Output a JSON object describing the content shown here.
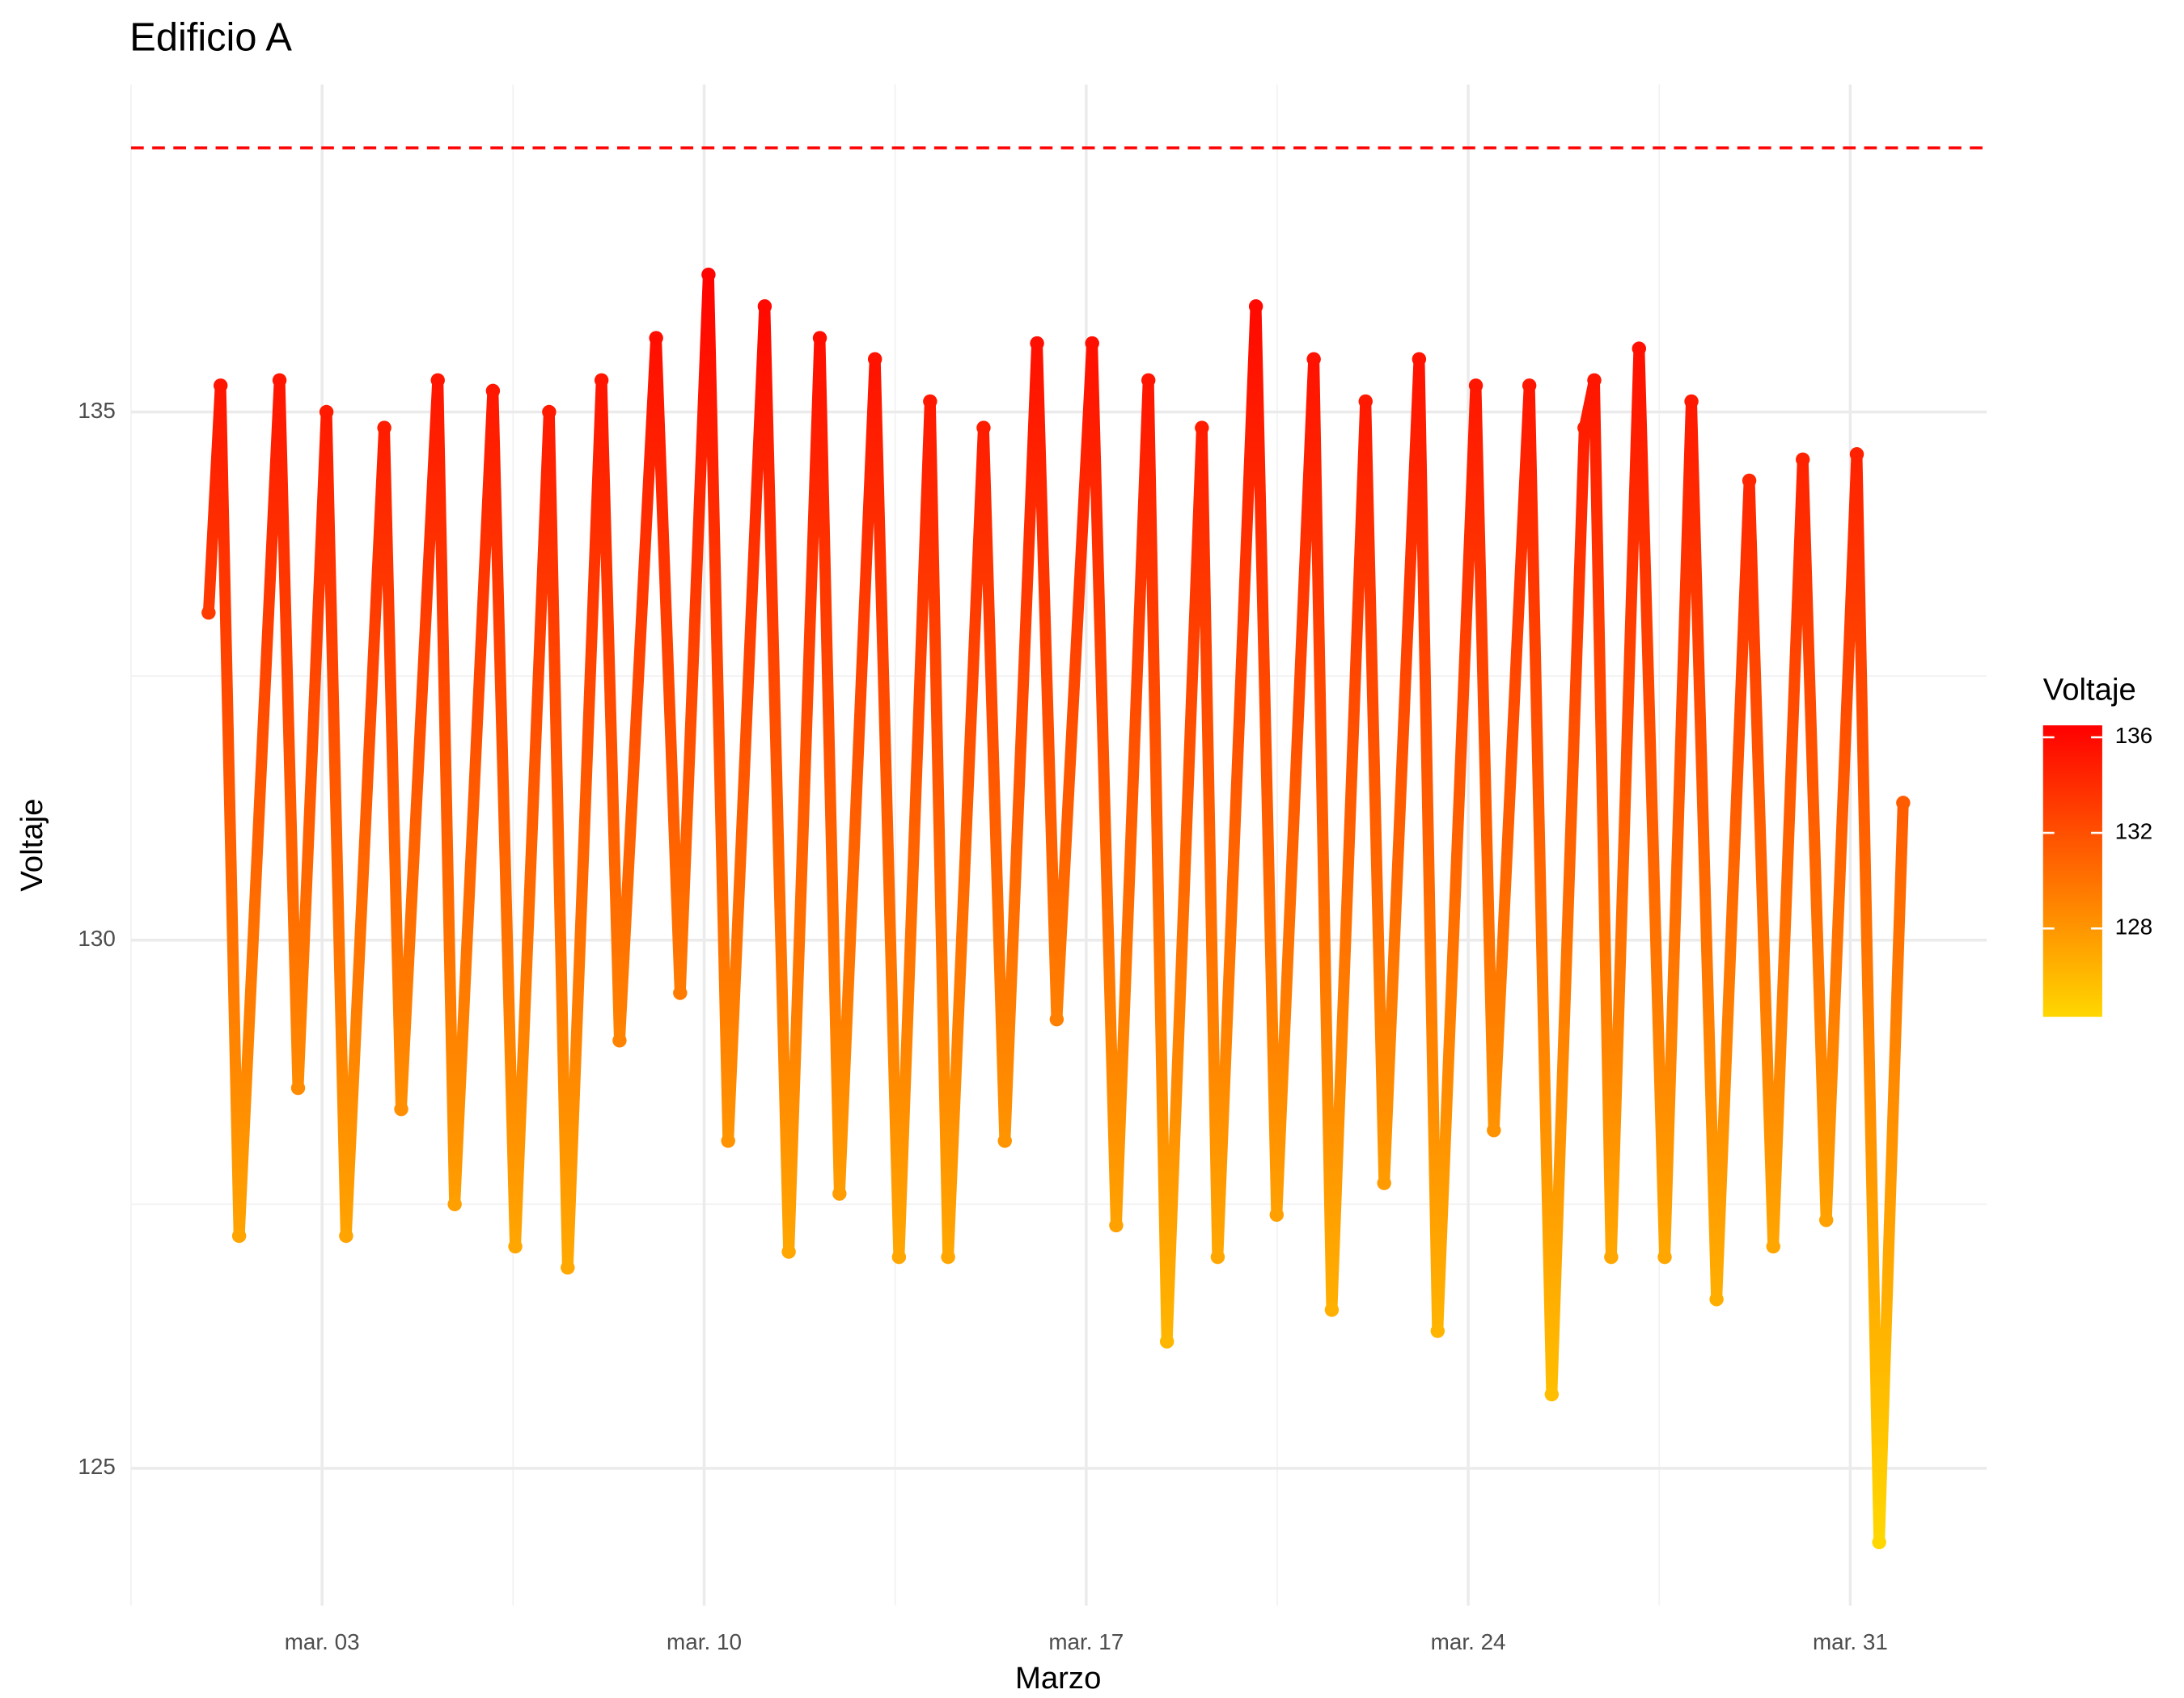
{
  "chart_data": {
    "type": "scatter",
    "title": "Edificio A",
    "x_label": "Marzo",
    "y_label": "Voltaje",
    "x": [
      0.92,
      1.14,
      1.48,
      2.22,
      2.56,
      3.08,
      3.44,
      4.14,
      4.45,
      5.12,
      5.43,
      6.13,
      6.54,
      7.16,
      7.5,
      8.12,
      8.45,
      9.12,
      9.56,
      10.08,
      10.44,
      11.11,
      11.55,
      12.12,
      12.48,
      13.13,
      13.57,
      14.14,
      14.47,
      15.12,
      15.51,
      16.1,
      16.46,
      17.11,
      17.55,
      18.14,
      18.48,
      19.12,
      19.41,
      20.11,
      20.49,
      21.17,
      21.5,
      22.12,
      22.46,
      23.1,
      23.44,
      24.14,
      24.47,
      25.12,
      25.53,
      26.13,
      26.31,
      26.62,
      27.13,
      27.6,
      28.09,
      28.55,
      29.15,
      29.59,
      30.13,
      30.56,
      31.12,
      31.53,
      31.97
    ],
    "values": [
      133.1,
      135.25,
      127.2,
      135.3,
      128.6,
      135.0,
      127.2,
      134.85,
      128.4,
      135.3,
      127.5,
      135.2,
      127.1,
      135.0,
      126.9,
      135.3,
      129.05,
      135.7,
      129.5,
      136.3,
      128.1,
      136.0,
      127.05,
      135.7,
      127.6,
      135.5,
      127.0,
      135.1,
      127.0,
      134.85,
      128.1,
      135.65,
      129.25,
      135.65,
      127.3,
      135.3,
      126.2,
      134.85,
      127.0,
      136.0,
      127.4,
      135.5,
      126.5,
      135.1,
      127.7,
      135.5,
      126.3,
      135.25,
      128.2,
      135.25,
      125.7,
      134.85,
      135.3,
      127.0,
      135.6,
      127.0,
      135.1,
      126.6,
      134.35,
      127.1,
      134.55,
      127.35,
      134.6,
      124.3,
      131.3
    ],
    "xlim": [
      -0.5,
      33.5
    ],
    "ylim": [
      123.7,
      138.1
    ],
    "xticks": [
      {
        "value": 3,
        "label": "mar. 03"
      },
      {
        "value": 10,
        "label": "mar. 10"
      },
      {
        "value": 17,
        "label": "mar. 17"
      },
      {
        "value": 24,
        "label": "mar. 24"
      },
      {
        "value": 31,
        "label": "mar. 31"
      }
    ],
    "yticks": [
      125,
      130,
      135
    ],
    "xminor": [
      -0.5,
      6.5,
      13.5,
      20.5,
      27.5
    ],
    "yminor": [
      127.5,
      132.5
    ],
    "grid": true,
    "hline": {
      "value": 137.5,
      "color": "#FF0000"
    },
    "colorbar": {
      "title": "Voltaje",
      "ticks": [
        128,
        132,
        136
      ],
      "lim": [
        124.3,
        136.5
      ],
      "low": "#FFD700",
      "high": "#FF0000"
    }
  }
}
